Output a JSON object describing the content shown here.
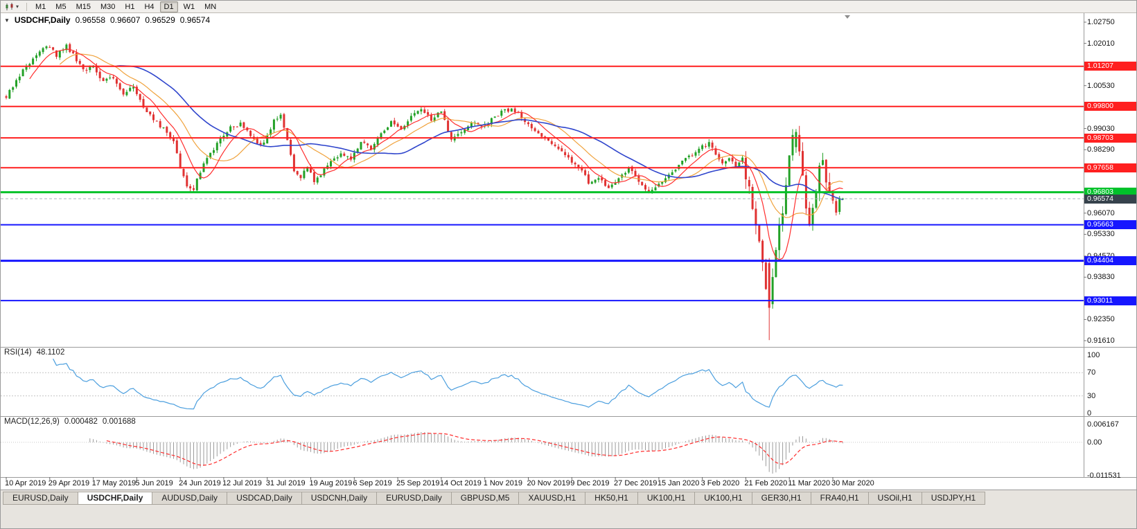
{
  "toolbar": {
    "timeframes": [
      "M1",
      "M5",
      "M15",
      "M30",
      "H1",
      "H4",
      "D1",
      "W1",
      "MN"
    ],
    "active_timeframe": "D1"
  },
  "chart": {
    "info": {
      "symbol": "USDCHF,Daily",
      "open": "0.96558",
      "high": "0.96607",
      "low": "0.96529",
      "close": "0.96574"
    },
    "price_axis": {
      "ticks": [
        "1.02750",
        "1.02010",
        "1.00530",
        "0.99030",
        "0.98290",
        "0.96070",
        "0.95330",
        "0.94570",
        "0.93830",
        "0.92350",
        "0.91610"
      ]
    },
    "levels": [
      {
        "value": "1.01207",
        "price": 1.01207,
        "color": "#ff1f1f",
        "thickness": 2,
        "kind": "resistance"
      },
      {
        "value": "0.99800",
        "price": 0.998,
        "color": "#ff1f1f",
        "thickness": 2,
        "kind": "resistance"
      },
      {
        "value": "0.98703",
        "price": 0.98703,
        "color": "#ff1f1f",
        "thickness": 2,
        "kind": "resistance"
      },
      {
        "value": "0.97658",
        "price": 0.97658,
        "color": "#ff1f1f",
        "thickness": 2,
        "kind": "resistance"
      },
      {
        "value": "0.96803",
        "price": 0.96803,
        "color": "#00c22a",
        "thickness": 3,
        "kind": "pivot"
      },
      {
        "value": "0.95663",
        "price": 0.95663,
        "color": "#1616ff",
        "thickness": 2,
        "kind": "support"
      },
      {
        "value": "0.94404",
        "price": 0.94404,
        "color": "#1616ff",
        "thickness": 3,
        "kind": "support"
      },
      {
        "value": "0.93011",
        "price": 0.93011,
        "color": "#1616ff",
        "thickness": 2,
        "kind": "support"
      }
    ],
    "current_price": {
      "value": "0.96574",
      "price": 0.96574
    }
  },
  "rsi": {
    "label": "RSI(14)",
    "value": "48.1102",
    "scale": [
      "100",
      "70",
      "30",
      "0"
    ],
    "guide_levels": [
      70,
      30
    ]
  },
  "macd": {
    "label": "MACD(12,26,9)",
    "value_main": "0.000482",
    "value_signal": "0.001688",
    "scale_top": "0.006167",
    "scale_zero": "0.00",
    "scale_bottom": "-0.011531"
  },
  "time_axis": {
    "labels": [
      {
        "label": "10 Apr 2019",
        "bar": 0
      },
      {
        "label": "29 Apr 2019",
        "bar": 13
      },
      {
        "label": "17 May 2019",
        "bar": 26
      },
      {
        "label": "5 Jun 2019",
        "bar": 39
      },
      {
        "label": "24 Jun 2019",
        "bar": 52
      },
      {
        "label": "12 Jul 2019",
        "bar": 65
      },
      {
        "label": "31 Jul 2019",
        "bar": 78
      },
      {
        "label": "19 Aug 2019",
        "bar": 91
      },
      {
        "label": "6 Sep 2019",
        "bar": 104
      },
      {
        "label": "25 Sep 2019",
        "bar": 117
      },
      {
        "label": "14 Oct 2019",
        "bar": 130
      },
      {
        "label": "1 Nov 2019",
        "bar": 143
      },
      {
        "label": "20 Nov 2019",
        "bar": 156
      },
      {
        "label": "9 Dec 2019",
        "bar": 169
      },
      {
        "label": "27 Dec 2019",
        "bar": 182
      },
      {
        "label": "15 Jan 2020",
        "bar": 195
      },
      {
        "label": "3 Feb 2020",
        "bar": 208
      },
      {
        "label": "21 Feb 2020",
        "bar": 221
      },
      {
        "label": "11 Mar 2020",
        "bar": 234
      },
      {
        "label": "30 Mar 2020",
        "bar": 247
      }
    ]
  },
  "tabs": {
    "items": [
      "EURUSD,Daily",
      "USDCHF,Daily",
      "AUDUSD,Daily",
      "USDCAD,Daily",
      "USDCNH,Daily",
      "EURUSD,Daily",
      "GBPUSD,M5",
      "XAUUSD,H1",
      "HK50,H1",
      "UK100,H1",
      "UK100,H1",
      "GER30,H1",
      "FRA40,H1",
      "USOil,H1",
      "USDJPY,H1"
    ],
    "active_index": 1
  },
  "colors": {
    "bull": "#23a127",
    "bear": "#e03232",
    "ma_fast": "#ff2d2d",
    "ma_medium": "#f0a23c",
    "ma_slow": "#2f45cc",
    "rsi_line": "#4a9ede",
    "macd_hist": "#9b9b9b",
    "macd_signal": "#ff2a2a",
    "current_badge": "#36424c"
  },
  "chart_data": {
    "type": "candlestick",
    "symbol": "USDCHF",
    "timeframe": "D1",
    "y_axis": {
      "min": 0.9161,
      "max": 1.0275
    },
    "bar_count": 251,
    "ma_periods": [
      8,
      17,
      34
    ],
    "horizontal_levels": {
      "resistance": [
        1.01207,
        0.998,
        0.98703,
        0.97658
      ],
      "pivot": 0.96803,
      "support": [
        0.95663,
        0.94404,
        0.93011
      ]
    },
    "indicators": [
      {
        "name": "RSI",
        "params": [
          14
        ],
        "last_value": 48.1102,
        "range": [
          0,
          100
        ],
        "guides": [
          70,
          30
        ]
      },
      {
        "name": "MACD",
        "params": [
          12,
          26,
          9
        ],
        "last_values": [
          0.000482,
          0.001688
        ],
        "scale": [
          0.006167,
          -0.011531
        ]
      }
    ],
    "key_bars": [
      {
        "index": 228,
        "open": 0.9432,
        "high": 0.945,
        "low": 0.9163,
        "close": 0.9276
      },
      {
        "index": 236,
        "open": 0.9838,
        "high": 0.9901,
        "low": 0.9818,
        "close": 0.9891
      },
      {
        "index": 250,
        "open": 0.96558,
        "high": 0.96607,
        "low": 0.96529,
        "close": 0.96574
      }
    ],
    "price_anchors": [
      [
        0,
        1.0015
      ],
      [
        3,
        1.007
      ],
      [
        6,
        1.012
      ],
      [
        9,
        1.0165
      ],
      [
        12,
        1.0195
      ],
      [
        15,
        1.016
      ],
      [
        18,
        1.0192
      ],
      [
        21,
        1.0145
      ],
      [
        24,
        1.01
      ],
      [
        26,
        1.0125
      ],
      [
        29,
        1.0065
      ],
      [
        32,
        1.0085
      ],
      [
        35,
        1.0025
      ],
      [
        38,
        1.005
      ],
      [
        41,
        0.998
      ],
      [
        44,
        0.9935
      ],
      [
        47,
        0.99
      ],
      [
        50,
        0.9855
      ],
      [
        52,
        0.977
      ],
      [
        54,
        0.9705
      ],
      [
        56,
        0.9695
      ],
      [
        58,
        0.9755
      ],
      [
        61,
        0.9815
      ],
      [
        64,
        0.987
      ],
      [
        67,
        0.9905
      ],
      [
        70,
        0.992
      ],
      [
        73,
        0.9875
      ],
      [
        76,
        0.9845
      ],
      [
        78,
        0.9875
      ],
      [
        80,
        0.9935
      ],
      [
        82,
        0.9952
      ],
      [
        84,
        0.9865
      ],
      [
        86,
        0.9755
      ],
      [
        88,
        0.9725
      ],
      [
        90,
        0.9775
      ],
      [
        92,
        0.9715
      ],
      [
        94,
        0.9745
      ],
      [
        97,
        0.9785
      ],
      [
        100,
        0.9815
      ],
      [
        103,
        0.9795
      ],
      [
        106,
        0.9855
      ],
      [
        109,
        0.9835
      ],
      [
        112,
        0.9885
      ],
      [
        115,
        0.9925
      ],
      [
        118,
        0.9905
      ],
      [
        121,
        0.9945
      ],
      [
        124,
        0.9972
      ],
      [
        127,
        0.9935
      ],
      [
        130,
        0.9962
      ],
      [
        133,
        0.9865
      ],
      [
        136,
        0.9895
      ],
      [
        139,
        0.9925
      ],
      [
        142,
        0.9905
      ],
      [
        145,
        0.9935
      ],
      [
        148,
        0.9962
      ],
      [
        151,
        0.9972
      ],
      [
        154,
        0.9945
      ],
      [
        157,
        0.9905
      ],
      [
        160,
        0.9875
      ],
      [
        163,
        0.9845
      ],
      [
        166,
        0.9825
      ],
      [
        169,
        0.9785
      ],
      [
        172,
        0.9755
      ],
      [
        174,
        0.9715
      ],
      [
        177,
        0.9735
      ],
      [
        180,
        0.9695
      ],
      [
        183,
        0.9725
      ],
      [
        186,
        0.9765
      ],
      [
        189,
        0.9715
      ],
      [
        192,
        0.9675
      ],
      [
        195,
        0.9705
      ],
      [
        198,
        0.9745
      ],
      [
        201,
        0.9775
      ],
      [
        204,
        0.9805
      ],
      [
        207,
        0.9835
      ],
      [
        210,
        0.985
      ],
      [
        212,
        0.981
      ],
      [
        214,
        0.978
      ],
      [
        216,
        0.9795
      ],
      [
        218,
        0.9775
      ],
      [
        220,
        0.98
      ],
      [
        222,
        0.9685
      ],
      [
        224,
        0.9555
      ],
      [
        226,
        0.9425
      ],
      [
        228,
        0.928
      ],
      [
        229,
        0.938
      ],
      [
        230,
        0.9475
      ],
      [
        231,
        0.9555
      ],
      [
        232,
        0.9625
      ],
      [
        233,
        0.9715
      ],
      [
        234,
        0.981
      ],
      [
        235,
        0.9875
      ],
      [
        236,
        0.9893
      ],
      [
        237,
        0.983
      ],
      [
        238,
        0.9725
      ],
      [
        239,
        0.9625
      ],
      [
        240,
        0.9555
      ],
      [
        241,
        0.9625
      ],
      [
        242,
        0.9695
      ],
      [
        243,
        0.9755
      ],
      [
        244,
        0.9775
      ],
      [
        245,
        0.9725
      ],
      [
        246,
        0.968
      ],
      [
        247,
        0.9645
      ],
      [
        248,
        0.9615
      ],
      [
        249,
        0.9665
      ],
      [
        250,
        0.9657
      ]
    ]
  }
}
